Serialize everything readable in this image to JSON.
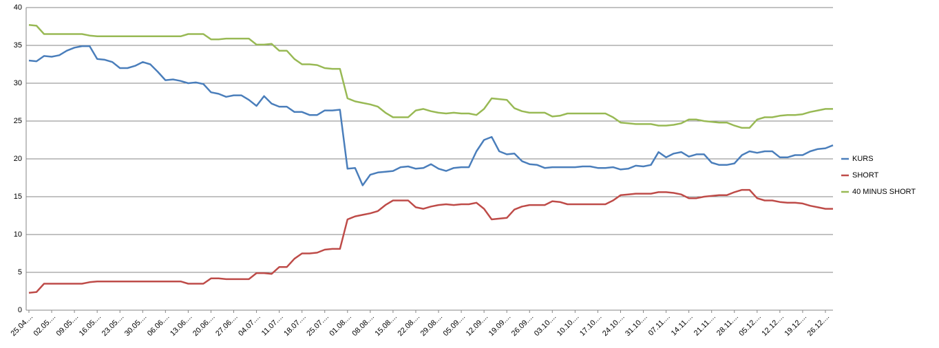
{
  "chart_data": {
    "type": "line",
    "categories": [
      "25.04....",
      null,
      null,
      "02.05....",
      null,
      null,
      "09.05....",
      null,
      null,
      "16.05....",
      null,
      null,
      "23.05....",
      null,
      null,
      "30.05....",
      null,
      null,
      "06.06....",
      null,
      null,
      "13.06....",
      null,
      null,
      "20.06....",
      null,
      null,
      "27.06....",
      null,
      null,
      "04.07....",
      null,
      null,
      "11.07....",
      null,
      null,
      "18.07....",
      null,
      null,
      "25.07....",
      null,
      null,
      "01.08....",
      null,
      null,
      "08.08....",
      null,
      null,
      "15.08....",
      null,
      null,
      "22.08....",
      null,
      null,
      "29.08....",
      null,
      null,
      "05.09....",
      null,
      null,
      "12.09....",
      null,
      null,
      "19.09....",
      null,
      null,
      "26.09....",
      null,
      null,
      "03.10....",
      null,
      null,
      "10.10....",
      null,
      null,
      "17.10....",
      null,
      null,
      "24.10....",
      null,
      null,
      "31.10....",
      null,
      null,
      "07.11....",
      null,
      null,
      "14.11....",
      null,
      null,
      "21.11....",
      null,
      null,
      "28.11....",
      null,
      null,
      "05.12....",
      null,
      null,
      "12.12....",
      null,
      null,
      "19.12....",
      null,
      null,
      "26.12....",
      null
    ],
    "series": [
      {
        "name": "KURS",
        "color": "#4a7ebb",
        "values": [
          33.0,
          32.9,
          33.6,
          33.5,
          33.7,
          34.3,
          34.7,
          34.9,
          34.9,
          33.2,
          33.1,
          32.8,
          32.0,
          32.0,
          32.3,
          32.8,
          32.5,
          31.5,
          30.4,
          30.5,
          30.3,
          30.0,
          30.1,
          29.9,
          28.8,
          28.6,
          28.2,
          28.4,
          28.4,
          27.8,
          27.0,
          28.3,
          27.3,
          26.9,
          26.9,
          26.2,
          26.2,
          25.8,
          25.8,
          26.4,
          26.4,
          26.5,
          18.7,
          18.8,
          16.5,
          17.9,
          18.2,
          18.3,
          18.4,
          18.9,
          19.0,
          18.7,
          18.8,
          19.3,
          18.7,
          18.4,
          18.8,
          18.9,
          18.9,
          21.0,
          22.5,
          22.9,
          21.0,
          20.6,
          20.7,
          19.7,
          19.3,
          19.2,
          18.8,
          18.9,
          18.9,
          18.9,
          18.9,
          19.0,
          19.0,
          18.8,
          18.8,
          18.9,
          18.6,
          18.7,
          19.1,
          19.0,
          19.2,
          20.9,
          20.2,
          20.7,
          20.9,
          20.3,
          20.6,
          20.6,
          19.5,
          19.2,
          19.2,
          19.4,
          20.5,
          21.0,
          20.8,
          21.0,
          21.0,
          20.2,
          20.2,
          20.5,
          20.5,
          21.0,
          21.3,
          21.4,
          21.8
        ]
      },
      {
        "name": "SHORT",
        "color": "#be4b48",
        "values": [
          2.3,
          2.4,
          3.5,
          3.5,
          3.5,
          3.5,
          3.5,
          3.5,
          3.7,
          3.8,
          3.8,
          3.8,
          3.8,
          3.8,
          3.8,
          3.8,
          3.8,
          3.8,
          3.8,
          3.8,
          3.8,
          3.5,
          3.5,
          3.5,
          4.2,
          4.2,
          4.1,
          4.1,
          4.1,
          4.1,
          4.9,
          4.9,
          4.8,
          5.7,
          5.7,
          6.8,
          7.5,
          7.5,
          7.6,
          8.0,
          8.1,
          8.1,
          12.0,
          12.4,
          12.6,
          12.8,
          13.1,
          13.9,
          14.5,
          14.5,
          14.5,
          13.6,
          13.4,
          13.7,
          13.9,
          14.0,
          13.9,
          14.0,
          14.0,
          14.2,
          13.4,
          12.0,
          12.1,
          12.2,
          13.3,
          13.7,
          13.9,
          13.9,
          13.9,
          14.4,
          14.3,
          14.0,
          14.0,
          14.0,
          14.0,
          14.0,
          14.0,
          14.5,
          15.2,
          15.3,
          15.4,
          15.4,
          15.4,
          15.6,
          15.6,
          15.5,
          15.3,
          14.8,
          14.8,
          15.0,
          15.1,
          15.2,
          15.2,
          15.6,
          15.9,
          15.9,
          14.8,
          14.5,
          14.5,
          14.3,
          14.2,
          14.2,
          14.1,
          13.8,
          13.6,
          13.4,
          13.4
        ]
      },
      {
        "name": "40 MINUS SHORT",
        "color": "#98b954",
        "values": [
          37.7,
          37.6,
          36.5,
          36.5,
          36.5,
          36.5,
          36.5,
          36.5,
          36.3,
          36.2,
          36.2,
          36.2,
          36.2,
          36.2,
          36.2,
          36.2,
          36.2,
          36.2,
          36.2,
          36.2,
          36.2,
          36.5,
          36.5,
          36.5,
          35.8,
          35.8,
          35.9,
          35.9,
          35.9,
          35.9,
          35.1,
          35.1,
          35.2,
          34.3,
          34.3,
          33.2,
          32.5,
          32.5,
          32.4,
          32.0,
          31.9,
          31.9,
          28.0,
          27.6,
          27.4,
          27.2,
          26.9,
          26.1,
          25.5,
          25.5,
          25.5,
          26.4,
          26.6,
          26.3,
          26.1,
          26.0,
          26.1,
          26.0,
          26.0,
          25.8,
          26.6,
          28.0,
          27.9,
          27.8,
          26.7,
          26.3,
          26.1,
          26.1,
          26.1,
          25.6,
          25.7,
          26.0,
          26.0,
          26.0,
          26.0,
          26.0,
          26.0,
          25.5,
          24.8,
          24.7,
          24.6,
          24.6,
          24.6,
          24.4,
          24.4,
          24.5,
          24.7,
          25.2,
          25.2,
          25.0,
          24.9,
          24.8,
          24.8,
          24.4,
          24.1,
          24.1,
          25.2,
          25.5,
          25.5,
          25.7,
          25.8,
          25.8,
          25.9,
          26.2,
          26.4,
          26.6,
          26.6
        ]
      }
    ],
    "ylim": [
      0,
      40
    ],
    "yticks": [
      0,
      5,
      10,
      15,
      20,
      25,
      30,
      35,
      40
    ],
    "grid": true,
    "legend": "right"
  }
}
